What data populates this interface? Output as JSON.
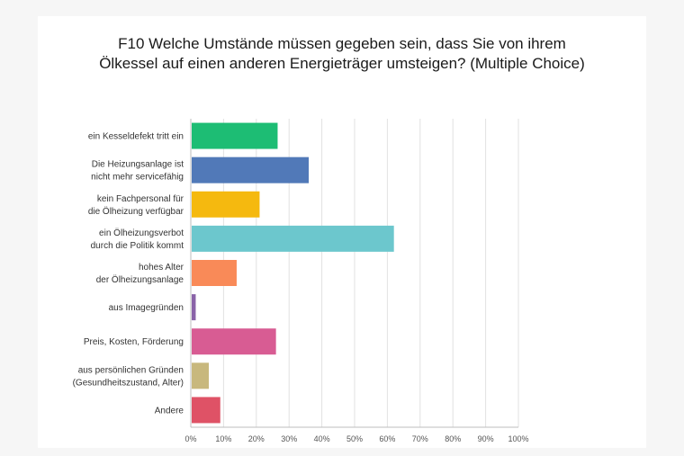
{
  "title_lines": [
    "F10 Welche Umstände müssen gegeben sein, dass Sie von ihrem",
    "Ölkessel auf einen anderen Energieträger umsteigen? (Multiple Choice)"
  ],
  "chart_data": {
    "type": "bar",
    "orientation": "horizontal",
    "title": "F10 Welche Umstände müssen gegeben sein, dass Sie von ihrem Ölkessel auf einen anderen Energieträger umsteigen? (Multiple Choice)",
    "categories": [
      [
        "ein Kesseldefekt tritt ein"
      ],
      [
        "Die Heizungsanlage ist",
        "nicht mehr servicefähig"
      ],
      [
        "kein Fachpersonal für",
        "die Ölheizung verfügbar"
      ],
      [
        "ein Ölheizungsverbot",
        "durch die Politik kommt"
      ],
      [
        "hohes Alter",
        "der Ölheizungsanlage"
      ],
      [
        "aus Imagegründen"
      ],
      [
        "Preis, Kosten, Förderung"
      ],
      [
        "aus persönlichen Gründen",
        "(Gesundheitszustand, Alter)"
      ],
      [
        "Andere"
      ]
    ],
    "values": [
      26.5,
      36,
      21,
      62,
      14,
      1.5,
      26,
      5.5,
      9
    ],
    "colors": [
      "#1dbd74",
      "#5179b8",
      "#f5b90f",
      "#6cc7cd",
      "#f98a58",
      "#8a63a8",
      "#d85c93",
      "#c8b87d",
      "#df5266"
    ],
    "xlim": [
      0,
      100
    ],
    "ticks": [
      "0%",
      "10%",
      "20%",
      "30%",
      "40%",
      "50%",
      "60%",
      "70%",
      "80%",
      "90%",
      "100%"
    ],
    "grid": true
  }
}
